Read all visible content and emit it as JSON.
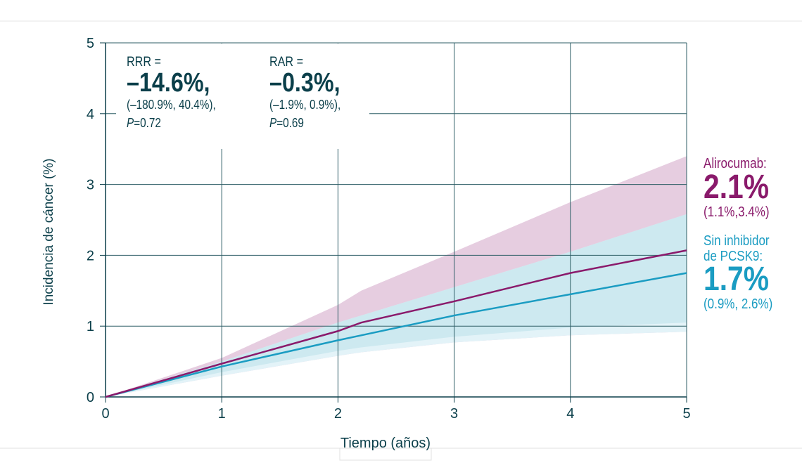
{
  "chart_data": {
    "type": "line",
    "xlabel": "Tiempo (años)",
    "ylabel": "Incidencia de cáncer (%)",
    "xlim": [
      0,
      5
    ],
    "ylim": [
      0,
      5
    ],
    "xticks": [
      "0",
      "1",
      "2",
      "3",
      "4",
      "5"
    ],
    "yticks": [
      "0",
      "1",
      "2",
      "3",
      "4",
      "5"
    ],
    "grid": true,
    "series": [
      {
        "name": "Alirocumab",
        "color": "#8a1a6b",
        "band_color": "#e6cde0",
        "x": [
          0,
          1,
          2,
          2.2,
          3,
          4,
          5
        ],
        "y": [
          0,
          0.47,
          0.93,
          1.05,
          1.35,
          1.75,
          2.07
        ],
        "upper": [
          0,
          0.55,
          1.3,
          1.5,
          2.05,
          2.75,
          3.4
        ]
      },
      {
        "name": "Sin inhibidor de PCSK9",
        "color": "#1a9cc2",
        "band_color": "#cde9f0",
        "x": [
          0,
          1,
          2,
          2.2,
          3,
          4,
          5
        ],
        "y": [
          0,
          0.43,
          0.8,
          0.87,
          1.15,
          1.45,
          1.75
        ],
        "upper": [
          0,
          0.5,
          1.05,
          1.15,
          1.55,
          2.05,
          2.58
        ],
        "lower": [
          0,
          0.35,
          0.65,
          0.7,
          0.85,
          0.98,
          1.05
        ],
        "lower_light": [
          0,
          0.3,
          0.58,
          0.63,
          0.77,
          0.87,
          0.92
        ]
      }
    ],
    "annotations": {
      "rrr": {
        "label": "RRR =",
        "value": "–14.6%,",
        "ci": "(–180.9%, 40.4%),",
        "p_label": "P",
        "p_value": "=0.72"
      },
      "rar": {
        "label": "RAR =",
        "value": "–0.3%,",
        "ci": "(–1.9%, 0.9%),",
        "p_label": "P",
        "p_value": "=0.69"
      }
    },
    "legend": {
      "alirocumab": {
        "label": "Alirocumab:",
        "value": "2.1%",
        "ci": "(1.1%,3.4%)"
      },
      "control": {
        "label1": "Sin inhibidor",
        "label2": "de PCSK9:",
        "value": "1.7%",
        "ci": "(0.9%, 2.6%)"
      }
    }
  }
}
